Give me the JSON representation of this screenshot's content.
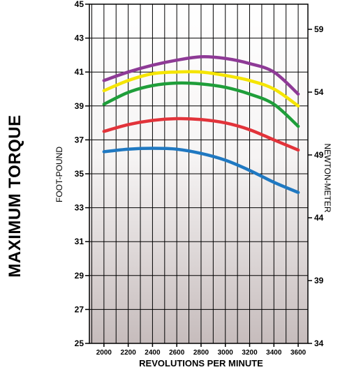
{
  "chart_data": {
    "type": "line",
    "title": "MAXIMUM TORQUE",
    "xlabel": "REVOLUTIONS PER MINUTE",
    "ylabel": "FOOT-POUND",
    "y2label": "NEWTON-METER",
    "xlim": [
      1880,
      3680
    ],
    "ylim": [
      25,
      45
    ],
    "y2lim": [
      34,
      61
    ],
    "x_ticks": [
      2000,
      2200,
      2400,
      2600,
      2800,
      3000,
      3200,
      3400,
      3600
    ],
    "y_ticks": [
      25,
      27,
      29,
      31,
      33,
      35,
      37,
      39,
      41,
      43,
      45
    ],
    "y2_ticks": [
      34,
      39,
      44,
      49,
      54,
      59
    ],
    "grid": true,
    "background": "vertical gradient white to light gray",
    "series": [
      {
        "color": "#8e3a96",
        "x": [
          2000,
          2200,
          2400,
          2600,
          2800,
          3000,
          3200,
          3400,
          3600
        ],
        "values": [
          40.5,
          41.0,
          41.4,
          41.7,
          41.9,
          41.8,
          41.5,
          41.0,
          39.7
        ]
      },
      {
        "color": "#f5e500",
        "x": [
          2000,
          2200,
          2400,
          2600,
          2800,
          3000,
          3200,
          3400,
          3600
        ],
        "values": [
          39.9,
          40.5,
          40.9,
          41.0,
          41.0,
          40.8,
          40.5,
          40.0,
          39.0
        ]
      },
      {
        "color": "#1f9e3a",
        "x": [
          2000,
          2200,
          2400,
          2600,
          2800,
          3000,
          3200,
          3400,
          3600
        ],
        "values": [
          39.1,
          39.8,
          40.2,
          40.35,
          40.3,
          40.1,
          39.7,
          39.1,
          37.8
        ]
      },
      {
        "color": "#e2333a",
        "x": [
          2000,
          2200,
          2400,
          2600,
          2800,
          3000,
          3200,
          3400,
          3600
        ],
        "values": [
          37.5,
          37.9,
          38.15,
          38.25,
          38.2,
          38.0,
          37.6,
          37.0,
          36.4
        ]
      },
      {
        "color": "#1f78c1",
        "x": [
          2000,
          2200,
          2400,
          2600,
          2800,
          3000,
          3200,
          3400,
          3600
        ],
        "values": [
          36.3,
          36.45,
          36.5,
          36.45,
          36.2,
          35.8,
          35.2,
          34.5,
          33.9
        ]
      }
    ]
  }
}
